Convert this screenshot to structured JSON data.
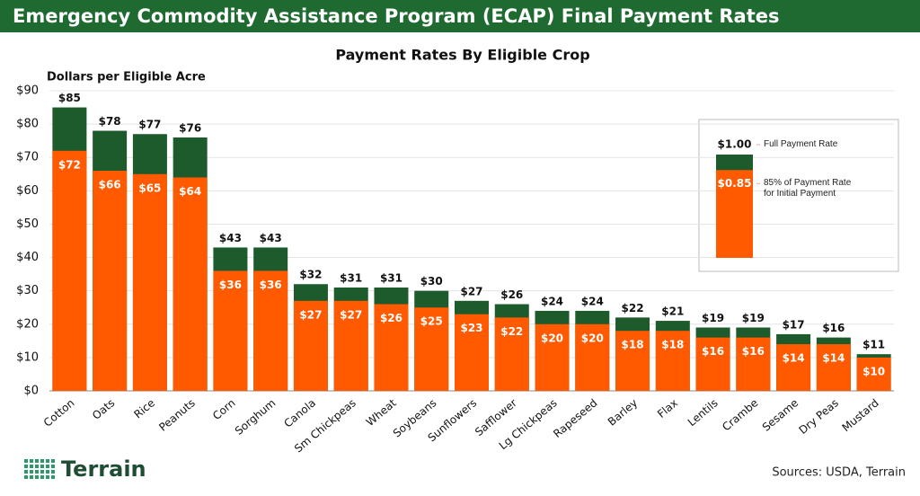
{
  "chart_data": {
    "type": "bar",
    "title": "Emergency Commodity Assistance Program (ECAP) Final Payment Rates",
    "subtitle": "Payment Rates By Eligible Crop",
    "y_label": "Dollars per Eligible Acre",
    "categories": [
      "Cotton",
      "Oats",
      "Rice",
      "Peanuts",
      "Corn",
      "Sorghum",
      "Canola",
      "Sm Chickpeas",
      "Wheat",
      "Soybeans",
      "Sunflowers",
      "Safflower",
      "Lg Chickpeas",
      "Rapeseed",
      "Barley",
      "Flax",
      "Lentils",
      "Crambe",
      "Sesame",
      "Dry Peas",
      "Mustard"
    ],
    "series": [
      {
        "name": "Full Payment Rate",
        "color": "#1d5a2c",
        "values": [
          85,
          78,
          77,
          76,
          43,
          43,
          32,
          31,
          31,
          30,
          27,
          26,
          24,
          24,
          22,
          21,
          19,
          19,
          17,
          16,
          11
        ],
        "value_labels": [
          "$85",
          "$78",
          "$77",
          "$76",
          "$43",
          "$43",
          "$32",
          "$31",
          "$31",
          "$30",
          "$27",
          "$26",
          "$24",
          "$24",
          "$22",
          "$21",
          "$19",
          "$19",
          "$17",
          "$16",
          "$11"
        ]
      },
      {
        "name": "85% of Payment Rate for Initial Payment",
        "color": "#ff5a00",
        "values": [
          72,
          66,
          65,
          64,
          36,
          36,
          27,
          27,
          26,
          25,
          23,
          22,
          20,
          20,
          18,
          18,
          16,
          16,
          14,
          14,
          10
        ],
        "value_labels": [
          "$72",
          "$66",
          "$65",
          "$64",
          "$36",
          "$36",
          "$27",
          "$27",
          "$26",
          "$25",
          "$23",
          "$22",
          "$20",
          "$20",
          "$18",
          "$18",
          "$16",
          "$16",
          "$14",
          "$14",
          "$10"
        ]
      }
    ],
    "legend_values": [
      {
        "value": 1,
        "label": "$1.00"
      },
      {
        "value": 0.85,
        "label": "$0.85"
      }
    ],
    "ylim": [
      0,
      90
    ],
    "yticks": [
      {
        "value": 0,
        "label": "$0"
      },
      {
        "value": 10,
        "label": "$10"
      },
      {
        "value": 20,
        "label": "$20"
      },
      {
        "value": 30,
        "label": "$30"
      },
      {
        "value": 40,
        "label": "$40"
      },
      {
        "value": 50,
        "label": "$50"
      },
      {
        "value": 60,
        "label": "$60"
      },
      {
        "value": 70,
        "label": "$70"
      },
      {
        "value": 80,
        "label": "$80"
      },
      {
        "value": 90,
        "label": "$90"
      }
    ],
    "grid": true,
    "logo": "Terrain",
    "source": "Sources: USDA, Terrain"
  }
}
